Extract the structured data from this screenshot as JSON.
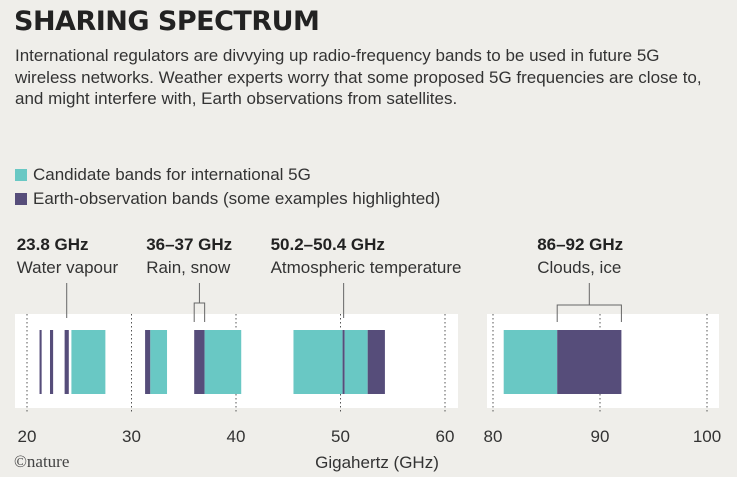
{
  "title": "SHARING SPECTRUM",
  "subtitle": "International regulators are divvying up radio-frequency bands to be used in future 5G wireless networks. Weather experts worry that some proposed 5G frequencies are close to, and might interfere with, Earth observations from satellites.",
  "credit": "©nature",
  "colors": {
    "candidate5g": "#69c8c4",
    "earthObs": "#564d7a",
    "background": "#efeeea",
    "panel": "#ffffff"
  },
  "chart_data": {
    "type": "bar",
    "xlabel": "Gigahertz (GHz)",
    "legend": [
      {
        "label": "Candidate bands for international 5G",
        "color": "#69c8c4"
      },
      {
        "label": "Earth-observation bands (some examples highlighted)",
        "color": "#564d7a"
      }
    ],
    "panels": [
      {
        "xlim": [
          20,
          60
        ],
        "ticks": [
          20,
          30,
          40,
          50,
          60
        ],
        "bands": [
          {
            "start": 21.2,
            "end": 21.4,
            "kind": "earth"
          },
          {
            "start": 22.2,
            "end": 22.5,
            "kind": "earth"
          },
          {
            "start": 23.6,
            "end": 24.0,
            "kind": "earth"
          },
          {
            "start": 24.25,
            "end": 27.5,
            "kind": "5g"
          },
          {
            "start": 31.3,
            "end": 31.8,
            "kind": "earth"
          },
          {
            "start": 31.8,
            "end": 33.4,
            "kind": "5g"
          },
          {
            "start": 36.0,
            "end": 37.0,
            "kind": "earth"
          },
          {
            "start": 37.0,
            "end": 40.5,
            "kind": "5g"
          },
          {
            "start": 45.5,
            "end": 50.2,
            "kind": "5g"
          },
          {
            "start": 50.2,
            "end": 50.4,
            "kind": "earth"
          },
          {
            "start": 50.4,
            "end": 52.6,
            "kind": "5g"
          },
          {
            "start": 52.6,
            "end": 54.25,
            "kind": "earth"
          }
        ],
        "annotations": [
          {
            "freq": "23.8 GHz",
            "label": "Water vapour",
            "start": 23.8,
            "end": 23.8
          },
          {
            "freq": "36–37 GHz",
            "label": "Rain, snow",
            "start": 36.0,
            "end": 37.0
          },
          {
            "freq": "50.2–50.4 GHz",
            "label": "Atmospheric temperature",
            "start": 50.2,
            "end": 50.4
          }
        ]
      },
      {
        "xlim": [
          80,
          100
        ],
        "ticks": [
          80,
          90,
          100
        ],
        "bands": [
          {
            "start": 81,
            "end": 86,
            "kind": "5g"
          },
          {
            "start": 86,
            "end": 92,
            "kind": "earth"
          }
        ],
        "annotations": [
          {
            "freq": "86–92 GHz",
            "label": "Clouds, ice",
            "start": 86,
            "end": 92
          }
        ]
      }
    ]
  }
}
